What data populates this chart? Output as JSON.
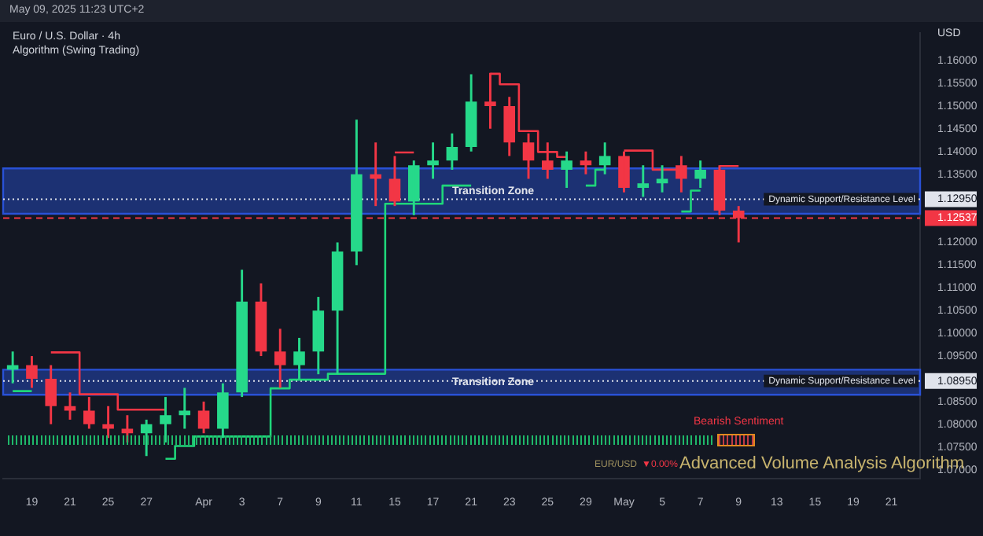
{
  "chart_data": {
    "type": "candlestick",
    "title": "Euro / U.S. Dollar · 4h",
    "subtitle": "Algorithm (Swing Trading)",
    "ylabel": "USD",
    "categories": [
      null,
      "19",
      null,
      "21",
      null,
      "25",
      null,
      "27",
      null,
      null,
      "Apr",
      null,
      "3",
      null,
      "7",
      null,
      "9",
      null,
      "11",
      null,
      "15",
      null,
      "17",
      null,
      "21",
      null,
      "23",
      null,
      "25",
      null,
      "29",
      null,
      "May",
      null,
      "5",
      null,
      "7",
      null,
      "9",
      null,
      "13",
      null,
      "15",
      null,
      "19",
      null,
      "21",
      null
    ],
    "ohlc": [
      [
        1.092,
        1.096,
        1.089,
        1.093
      ],
      [
        1.093,
        1.095,
        1.088,
        1.09
      ],
      [
        1.09,
        1.093,
        1.08,
        1.084
      ],
      [
        1.084,
        1.087,
        1.081,
        1.083
      ],
      [
        1.083,
        1.086,
        1.079,
        1.08
      ],
      [
        1.08,
        1.084,
        1.077,
        1.079
      ],
      [
        1.079,
        1.082,
        1.076,
        1.078
      ],
      [
        1.078,
        1.081,
        1.073,
        1.08
      ],
      [
        1.08,
        1.086,
        1.076,
        1.082
      ],
      [
        1.082,
        1.088,
        1.079,
        1.083
      ],
      [
        1.083,
        1.085,
        1.078,
        1.079
      ],
      [
        1.079,
        1.089,
        1.077,
        1.087
      ],
      [
        1.087,
        1.114,
        1.086,
        1.107
      ],
      [
        1.107,
        1.111,
        1.095,
        1.096
      ],
      [
        1.096,
        1.101,
        1.088,
        1.093
      ],
      [
        1.093,
        1.099,
        1.09,
        1.096
      ],
      [
        1.096,
        1.108,
        1.091,
        1.105
      ],
      [
        1.105,
        1.12,
        1.091,
        1.118
      ],
      [
        1.118,
        1.147,
        1.115,
        1.135
      ],
      [
        1.135,
        1.142,
        1.128,
        1.134
      ],
      [
        1.134,
        1.139,
        1.128,
        1.129
      ],
      [
        1.129,
        1.138,
        1.126,
        1.137
      ],
      [
        1.137,
        1.142,
        1.134,
        1.138
      ],
      [
        1.138,
        1.144,
        1.136,
        1.141
      ],
      [
        1.141,
        1.157,
        1.14,
        1.151
      ],
      [
        1.151,
        1.1573,
        1.145,
        1.15
      ],
      [
        1.15,
        1.152,
        1.139,
        1.142
      ],
      [
        1.142,
        1.144,
        1.134,
        1.138
      ],
      [
        1.138,
        1.142,
        1.134,
        1.136
      ],
      [
        1.136,
        1.14,
        1.132,
        1.138
      ],
      [
        1.138,
        1.14,
        1.135,
        1.137
      ],
      [
        1.137,
        1.142,
        1.135,
        1.139
      ],
      [
        1.139,
        1.14,
        1.131,
        1.132
      ],
      [
        1.132,
        1.137,
        1.13,
        1.133
      ],
      [
        1.133,
        1.137,
        1.131,
        1.134
      ],
      [
        1.137,
        1.139,
        1.131,
        1.134
      ],
      [
        1.134,
        1.138,
        1.132,
        1.136
      ],
      [
        1.136,
        1.137,
        1.126,
        1.127
      ],
      [
        1.127,
        1.128,
        1.12,
        1.12537
      ],
      null,
      null,
      null,
      null,
      null,
      null,
      null,
      null,
      null
    ],
    "colors": [
      "#26d98a",
      "#f23645",
      "#f23645",
      "#f23645",
      "#f23645",
      "#f23645",
      "#f23645",
      "#26d98a",
      "#26d98a",
      "#26d98a",
      "#f23645",
      "#26d98a",
      "#26d98a",
      "#f23645",
      "#f23645",
      "#26d98a",
      "#26d98a",
      "#26d98a",
      "#26d98a",
      "#f23645",
      "#f23645",
      "#26d98a",
      "#26d98a",
      "#26d98a",
      "#26d98a",
      "#f23645",
      "#f23645",
      "#f23645",
      "#f23645",
      "#26d98a",
      "#f23645",
      "#26d98a",
      "#f23645",
      "#26d98a",
      "#26d98a",
      "#f23645",
      "#26d98a",
      "#f23645",
      "#f23645",
      null,
      null,
      null,
      null,
      null,
      null,
      null,
      null,
      null
    ],
    "series": [
      {
        "type": "step",
        "color": "#1fd67a",
        "values": [
          1.0873,
          1.0873,
          null,
          null,
          null,
          null,
          null,
          null,
          1.0724,
          1.0752,
          1.0773,
          1.0773,
          1.0773,
          1.0773,
          1.0879,
          1.0898,
          1.0898,
          1.0911,
          1.0911,
          1.0911,
          1.1285,
          1.1285,
          1.1285,
          1.1325,
          1.1325,
          null,
          null,
          null,
          null,
          null,
          1.1325,
          1.136,
          null,
          null,
          null,
          1.1268,
          1.1314,
          null,
          null,
          null,
          null,
          null,
          null,
          null,
          null,
          null,
          null,
          null
        ]
      },
      {
        "type": "step",
        "color": "#f23645",
        "values": [
          null,
          null,
          1.0958,
          1.0958,
          1.0866,
          1.0866,
          1.0832,
          1.0832,
          1.0832,
          null,
          null,
          null,
          null,
          null,
          null,
          null,
          null,
          null,
          null,
          null,
          1.1398,
          1.1398,
          null,
          null,
          null,
          1.1571,
          1.1548,
          1.1445,
          1.1399,
          1.1388,
          null,
          null,
          1.1402,
          1.1402,
          1.136,
          1.136,
          null,
          1.1368,
          1.1368,
          null,
          null,
          null,
          null,
          null,
          null,
          null,
          null,
          null
        ]
      }
    ],
    "ylim": [
      1.068,
      1.166
    ],
    "yticks": [
      {
        "value": 1.07,
        "label": "1.07000"
      },
      {
        "value": 1.075,
        "label": "1.07500"
      },
      {
        "value": 1.08,
        "label": "1.08000"
      },
      {
        "value": 1.085,
        "label": "1.08500"
      },
      {
        "value": 1.0895,
        "label": "1.08950"
      },
      {
        "value": 1.095,
        "label": "1.09500"
      },
      {
        "value": 1.1,
        "label": "1.10000"
      },
      {
        "value": 1.105,
        "label": "1.10500"
      },
      {
        "value": 1.11,
        "label": "1.11000"
      },
      {
        "value": 1.115,
        "label": "1.11500"
      },
      {
        "value": 1.12,
        "label": "1.12000"
      },
      {
        "value": 1.12537,
        "label": "1.12537"
      },
      {
        "value": 1.1295,
        "label": "1.12950"
      },
      {
        "value": 1.135,
        "label": "1.13500"
      },
      {
        "value": 1.14,
        "label": "1.14000"
      },
      {
        "value": 1.145,
        "label": "1.14500"
      },
      {
        "value": 1.15,
        "label": "1.15000"
      },
      {
        "value": 1.155,
        "label": "1.15500"
      },
      {
        "value": 1.16,
        "label": "1.16000"
      }
    ],
    "bands": [
      {
        "axis": "y",
        "from": 1.1263,
        "to": 1.1363,
        "label": "Transition Zone",
        "color": "#2951d6"
      },
      {
        "axis": "y",
        "from": 1.0865,
        "to": 1.092,
        "label": "Transition Zone",
        "color": "#2951d6"
      }
    ],
    "ref_lines": [
      {
        "axis": "y",
        "value": 1.1295,
        "label": "Dynamic Support/Resistance Level",
        "color": "#e0e3eb",
        "line_style": "dotted"
      },
      {
        "axis": "y",
        "value": 1.0895,
        "label": "Dynamic Support/Resistance Level",
        "color": "#e0e3eb",
        "line_style": "dotted"
      },
      {
        "axis": "y",
        "value": 1.12537,
        "label": null,
        "color": "#f23645",
        "line_style": "dashed"
      }
    ],
    "annotations": [
      "May 09, 2025 11:23 UTC+2",
      "Bearish Sentiment",
      "EUR/USD",
      "▼0.00%",
      "Advanced Volume Analysis Algorithm"
    ],
    "grid": false,
    "legend": false
  }
}
